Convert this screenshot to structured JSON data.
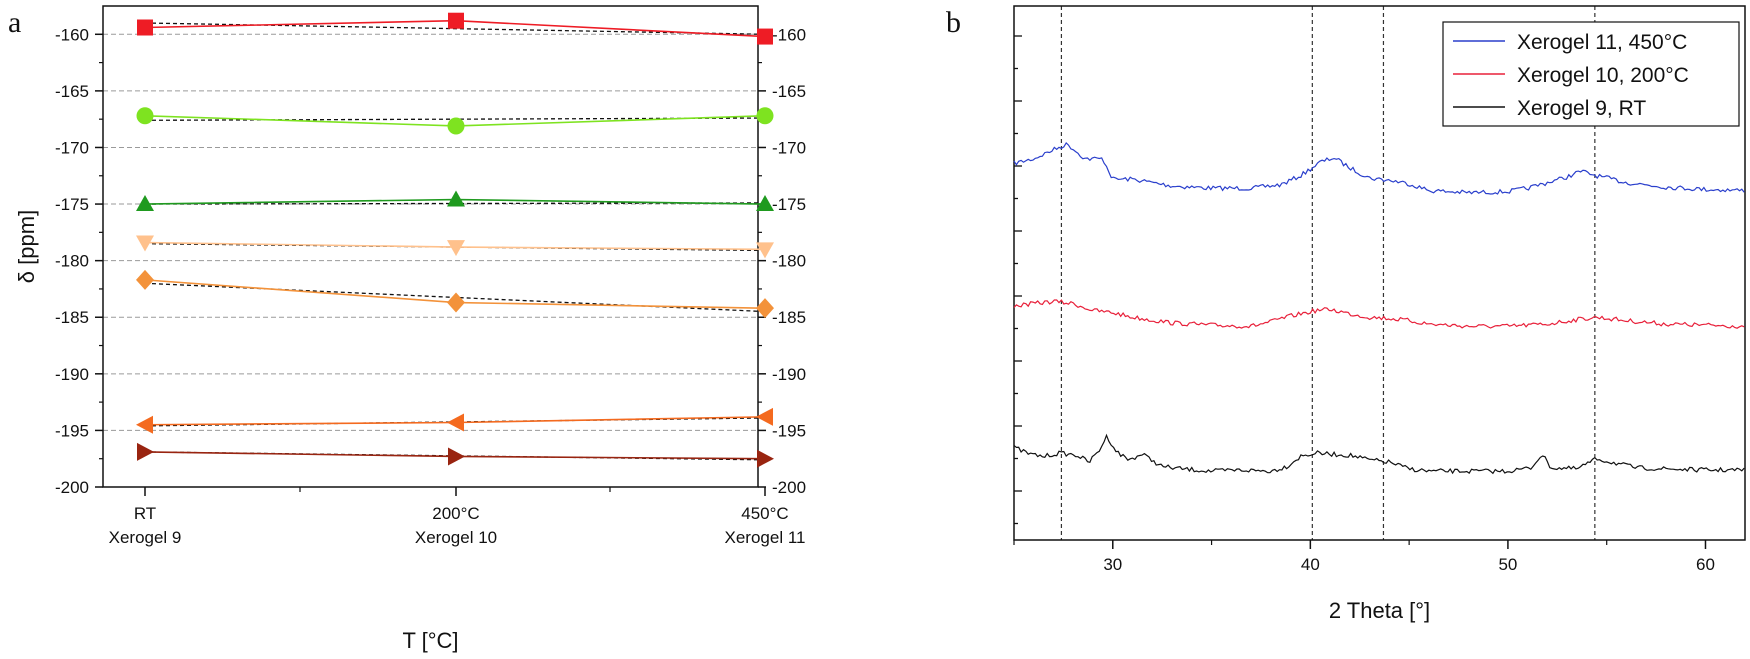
{
  "chart_data": [
    {
      "panel_label": "a",
      "type": "line",
      "xlabel": "T [°C]",
      "ylabel": "δ [ppm]",
      "ylim": [
        -200,
        -157.5
      ],
      "yticks": [
        -200,
        -195,
        -190,
        -185,
        -180,
        -175,
        -170,
        -165,
        -160
      ],
      "grid": "horizontal dashed",
      "categories": [
        {
          "top": "RT",
          "bottom": "Xerogel 9"
        },
        {
          "top": "200°C",
          "bottom": "Xerogel 10"
        },
        {
          "top": "450°C",
          "bottom": "Xerogel 11"
        }
      ],
      "series": [
        {
          "marker": "square",
          "color": "#ee1c25",
          "values": [
            -159.4,
            -158.8,
            -160.2
          ],
          "fit": [
            -159.0,
            -160.0
          ]
        },
        {
          "marker": "circle",
          "color": "#7ee320",
          "values": [
            -167.2,
            -168.1,
            -167.2
          ],
          "fit": [
            -167.6,
            -167.4
          ]
        },
        {
          "marker": "triangle-up",
          "color": "#1f9a1f",
          "values": [
            -175.0,
            -174.6,
            -175.0
          ],
          "fit": [
            -175.0,
            -174.9
          ]
        },
        {
          "marker": "triangle-down",
          "color": "#ffc18c",
          "values": [
            -178.4,
            -178.8,
            -179.0
          ],
          "fit": [
            -178.5,
            -179.1
          ]
        },
        {
          "marker": "diamond",
          "color": "#f3923a",
          "values": [
            -181.7,
            -183.7,
            -184.2
          ],
          "fit": [
            -182.0,
            -184.5
          ]
        },
        {
          "marker": "triangle-left",
          "color": "#f46a1f",
          "values": [
            -194.5,
            -194.3,
            -193.8
          ],
          "fit": [
            -194.6,
            -193.9
          ]
        },
        {
          "marker": "triangle-right",
          "color": "#992410",
          "values": [
            -196.9,
            -197.3,
            -197.5
          ],
          "fit": [
            -196.9,
            -197.6
          ]
        }
      ]
    },
    {
      "panel_label": "b",
      "type": "line",
      "xlabel": "2 Theta [°]",
      "xlim": [
        25,
        62
      ],
      "xticks": [
        30,
        40,
        50,
        60
      ],
      "reference_lines_x": [
        27.4,
        40.1,
        43.7,
        54.4
      ],
      "legend_position": "top-right",
      "series": [
        {
          "name": "Xerogel 11, 450°C",
          "color": "#2a3fcc",
          "points": [
            [
              25,
              171.4
            ],
            [
              26,
              171.0
            ],
            [
              27,
              170.2
            ],
            [
              27.7,
              169.7
            ],
            [
              28.6,
              171.0
            ],
            [
              29.5,
              171.0
            ],
            [
              30,
              172.8
            ],
            [
              31,
              172.8
            ],
            [
              32,
              173.1
            ],
            [
              33,
              173.4
            ],
            [
              35,
              173.6
            ],
            [
              37,
              173.6
            ],
            [
              38.5,
              173.3
            ],
            [
              39.5,
              172.5
            ],
            [
              40.5,
              171.3
            ],
            [
              41.2,
              170.9
            ],
            [
              42,
              171.8
            ],
            [
              43,
              172.7
            ],
            [
              44,
              172.9
            ],
            [
              45,
              173.2
            ],
            [
              46,
              173.8
            ],
            [
              48,
              174.0
            ],
            [
              50,
              173.9
            ],
            [
              51,
              173.6
            ],
            [
              52,
              173.1
            ],
            [
              53,
              172.6
            ],
            [
              53.7,
              172.1
            ],
            [
              54.5,
              172.5
            ],
            [
              56,
              173.1
            ],
            [
              58,
              173.5
            ],
            [
              60,
              173.7
            ],
            [
              62,
              173.8
            ]
          ]
        },
        {
          "name": "Xerogel 10, 200°C",
          "color": "#e8203a",
          "points": [
            [
              25,
              184.0
            ],
            [
              26,
              183.8
            ],
            [
              27,
              183.6
            ],
            [
              28,
              183.8
            ],
            [
              29,
              184.4
            ],
            [
              30,
              184.6
            ],
            [
              31,
              185.0
            ],
            [
              33,
              185.5
            ],
            [
              35,
              185.7
            ],
            [
              37,
              185.8
            ],
            [
              38,
              185.4
            ],
            [
              39,
              184.9
            ],
            [
              40.3,
              184.4
            ],
            [
              41,
              184.3
            ],
            [
              42,
              184.7
            ],
            [
              43,
              185.0
            ],
            [
              44,
              185.1
            ],
            [
              45,
              185.3
            ],
            [
              46,
              185.6
            ],
            [
              48,
              185.8
            ],
            [
              50,
              185.8
            ],
            [
              52,
              185.6
            ],
            [
              53.5,
              185.2
            ],
            [
              54.5,
              185.0
            ],
            [
              56,
              185.3
            ],
            [
              58,
              185.6
            ],
            [
              60,
              185.7
            ],
            [
              62,
              185.8
            ]
          ]
        },
        {
          "name": "Xerogel 9, RT",
          "color": "#111111",
          "points": [
            [
              25,
              196.5
            ],
            [
              25.8,
              197.1
            ],
            [
              26.5,
              197.3
            ],
            [
              27.3,
              197.0
            ],
            [
              28.2,
              197.2
            ],
            [
              28.8,
              197.8
            ],
            [
              29.3,
              196.8
            ],
            [
              29.7,
              195.5
            ],
            [
              30.2,
              196.9
            ],
            [
              30.8,
              197.6
            ],
            [
              31.5,
              197.1
            ],
            [
              32.5,
              198.2
            ],
            [
              33.5,
              198.4
            ],
            [
              35,
              198.6
            ],
            [
              36.5,
              198.5
            ],
            [
              38,
              198.6
            ],
            [
              38.8,
              198.2
            ],
            [
              39.5,
              197.3
            ],
            [
              40.3,
              197.0
            ],
            [
              41,
              197.1
            ],
            [
              42,
              197.2
            ],
            [
              43,
              197.6
            ],
            [
              44,
              197.8
            ],
            [
              45,
              198.4
            ],
            [
              46,
              198.6
            ],
            [
              48,
              198.6
            ],
            [
              50,
              198.6
            ],
            [
              51.2,
              198.3
            ],
            [
              51.7,
              197.1
            ],
            [
              52.2,
              198.3
            ],
            [
              53.5,
              198.4
            ],
            [
              54.5,
              197.5
            ],
            [
              55.2,
              197.8
            ],
            [
              56.5,
              198.3
            ],
            [
              58,
              198.4
            ],
            [
              60,
              198.5
            ],
            [
              62,
              198.5
            ]
          ]
        }
      ]
    }
  ]
}
